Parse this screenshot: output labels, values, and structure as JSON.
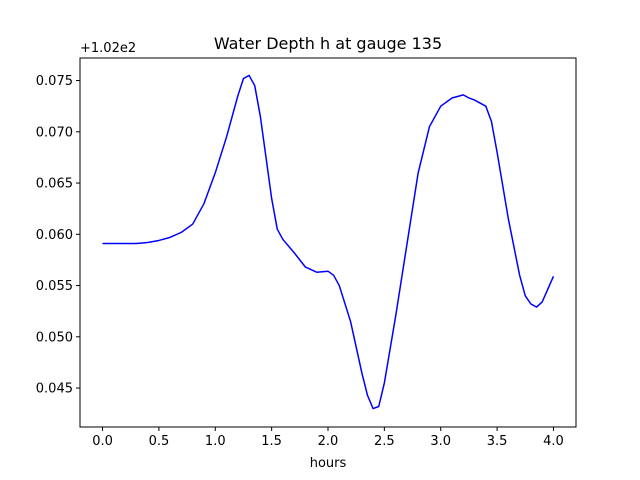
{
  "chart_data": {
    "type": "line",
    "title": "Water Depth h at gauge 135",
    "xlabel": "hours",
    "ylabel": "",
    "y_offset_label": "+1.02e2",
    "y_offset": 102,
    "xlim": [
      -0.2,
      4.2
    ],
    "ylim": [
      0.0412,
      0.0772
    ],
    "x_ticks": [
      0.0,
      0.5,
      1.0,
      1.5,
      2.0,
      2.5,
      3.0,
      3.5,
      4.0
    ],
    "x_tick_labels": [
      "0.0",
      "0.5",
      "1.0",
      "1.5",
      "2.0",
      "2.5",
      "3.0",
      "3.5",
      "4.0"
    ],
    "y_ticks": [
      0.045,
      0.05,
      0.055,
      0.06,
      0.065,
      0.07,
      0.075
    ],
    "y_tick_labels": [
      "0.045",
      "0.050",
      "0.055",
      "0.060",
      "0.065",
      "0.070",
      "0.075"
    ],
    "grid": false,
    "series": [
      {
        "color": "#0000ff",
        "x": [
          0.0,
          0.1,
          0.2,
          0.3,
          0.4,
          0.5,
          0.6,
          0.7,
          0.8,
          0.9,
          1.0,
          1.1,
          1.2,
          1.25,
          1.3,
          1.35,
          1.4,
          1.45,
          1.5,
          1.55,
          1.6,
          1.7,
          1.8,
          1.9,
          2.0,
          2.05,
          2.1,
          2.2,
          2.3,
          2.35,
          2.4,
          2.45,
          2.5,
          2.6,
          2.7,
          2.8,
          2.9,
          3.0,
          3.1,
          3.2,
          3.25,
          3.3,
          3.4,
          3.45,
          3.5,
          3.6,
          3.7,
          3.75,
          3.8,
          3.85,
          3.9,
          4.0
        ],
        "values": [
          0.0591,
          0.0591,
          0.0591,
          0.0591,
          0.0592,
          0.0594,
          0.0597,
          0.0602,
          0.061,
          0.063,
          0.066,
          0.0695,
          0.0735,
          0.0752,
          0.0755,
          0.0745,
          0.0715,
          0.0675,
          0.0635,
          0.0605,
          0.0595,
          0.0582,
          0.0568,
          0.0563,
          0.0564,
          0.056,
          0.055,
          0.0515,
          0.0465,
          0.0443,
          0.043,
          0.0432,
          0.0455,
          0.052,
          0.059,
          0.066,
          0.0705,
          0.0725,
          0.0733,
          0.0736,
          0.0733,
          0.0731,
          0.0725,
          0.071,
          0.068,
          0.0615,
          0.056,
          0.054,
          0.0532,
          0.0529,
          0.0534,
          0.0559
        ]
      }
    ]
  }
}
